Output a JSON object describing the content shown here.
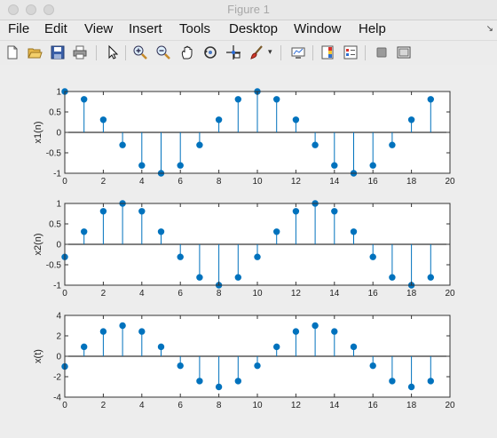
{
  "window": {
    "title": "Figure 1"
  },
  "menu": {
    "items": [
      "File",
      "Edit",
      "View",
      "Insert",
      "Tools",
      "Desktop",
      "Window",
      "Help"
    ]
  },
  "toolbar": {
    "icons": [
      "new-figure-icon",
      "open-file-icon",
      "save-icon",
      "print-icon",
      "pointer-icon",
      "zoom-in-icon",
      "zoom-out-icon",
      "pan-icon",
      "rotate-3d-icon",
      "data-cursor-icon",
      "brush-icon",
      "dropdown-arrow-icon",
      "link-plot-icon",
      "colorbar-icon",
      "legend-icon",
      "hide-plot-tools-icon",
      "show-plot-tools-icon"
    ]
  },
  "colors": {
    "stem": "#0072bd",
    "baseline": "#000000",
    "axes_bg": "#ffffff",
    "figure_bg": "#ededed"
  },
  "chart_data": [
    {
      "type": "stem",
      "ylabel": "x1(n)",
      "x": [
        0,
        1,
        2,
        3,
        4,
        5,
        6,
        7,
        8,
        9,
        10,
        11,
        12,
        13,
        14,
        15,
        16,
        17,
        18,
        19
      ],
      "values": [
        1,
        0.809,
        0.309,
        -0.309,
        -0.809,
        -1,
        -0.809,
        -0.309,
        0.309,
        0.809,
        1,
        0.809,
        0.309,
        -0.309,
        -0.809,
        -1,
        -0.809,
        -0.309,
        0.309,
        0.809
      ],
      "xlim": [
        0,
        20
      ],
      "ylim": [
        -1,
        1
      ],
      "xticks": [
        "0",
        "2",
        "4",
        "6",
        "8",
        "10",
        "12",
        "14",
        "16",
        "18",
        "20"
      ],
      "yticks": [
        "1",
        "0.5",
        "0",
        "-0.5",
        "-1"
      ]
    },
    {
      "type": "stem",
      "ylabel": "x2(n)",
      "x": [
        0,
        1,
        2,
        3,
        4,
        5,
        6,
        7,
        8,
        9,
        10,
        11,
        12,
        13,
        14,
        15,
        16,
        17,
        18,
        19
      ],
      "values": [
        -0.309,
        0.309,
        0.809,
        1,
        0.809,
        0.309,
        -0.309,
        -0.809,
        -1,
        -0.809,
        -0.309,
        0.309,
        0.809,
        1,
        0.809,
        0.309,
        -0.309,
        -0.809,
        -1,
        -0.809
      ],
      "xlim": [
        0,
        20
      ],
      "ylim": [
        -1,
        1
      ],
      "xticks": [
        "0",
        "2",
        "4",
        "6",
        "8",
        "10",
        "12",
        "14",
        "16",
        "18",
        "20"
      ],
      "yticks": [
        "1",
        "0.5",
        "0",
        "-0.5",
        "-1"
      ]
    },
    {
      "type": "stem",
      "ylabel": "x(t)",
      "x": [
        0,
        1,
        2,
        3,
        4,
        5,
        6,
        7,
        8,
        9,
        10,
        11,
        12,
        13,
        14,
        15,
        16,
        17,
        18,
        19
      ],
      "values": [
        -1,
        0.927,
        2.427,
        3,
        2.427,
        0.927,
        -0.927,
        -2.427,
        -3,
        -2.427,
        -0.927,
        0.927,
        2.427,
        3,
        2.427,
        0.927,
        -0.927,
        -2.427,
        -3,
        -2.427
      ],
      "xlim": [
        0,
        20
      ],
      "ylim": [
        -4,
        4
      ],
      "xticks": [
        "0",
        "2",
        "4",
        "6",
        "8",
        "10",
        "12",
        "14",
        "16",
        "18",
        "20"
      ],
      "yticks": [
        "4",
        "2",
        "0",
        "-2",
        "-4"
      ]
    }
  ]
}
